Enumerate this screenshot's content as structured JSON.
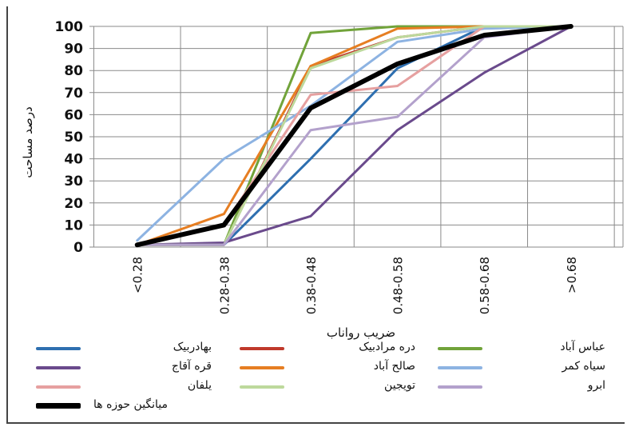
{
  "chart_data": {
    "type": "line",
    "categories": [
      "<0.28",
      "0.28-0.38",
      "0.38-0.48",
      "0.48-0.58",
      "0.58-0.68",
      ">0.68"
    ],
    "xlabel": "ضریب رواناب",
    "ylabel": "درصد مساحت",
    "ylim": [
      0,
      100
    ],
    "yticks": [
      "0",
      "10",
      "20",
      "30",
      "40",
      "50",
      "60",
      "70",
      "80",
      "90",
      "100"
    ],
    "grid": true,
    "legend_position": "bottom",
    "series": [
      {
        "name": "بهادربیک",
        "color": "#2E6FB0",
        "values": [
          1,
          1,
          40,
          81,
          100,
          100
        ]
      },
      {
        "name": "دره مرادبیک",
        "color": "#C0392B",
        "values": [
          1,
          1,
          82,
          95,
          100,
          100
        ]
      },
      {
        "name": "عباس آباد",
        "color": "#71A33A",
        "values": [
          1,
          1,
          97,
          100,
          100,
          100
        ]
      },
      {
        "name": "قره آقاج",
        "color": "#6A4A8C",
        "values": [
          1,
          2,
          14,
          53,
          79,
          100
        ]
      },
      {
        "name": "صالح آباد",
        "color": "#E67E22",
        "values": [
          1,
          15,
          82,
          99,
          100,
          100
        ]
      },
      {
        "name": "سیاه کمر",
        "color": "#8DB3E2",
        "values": [
          3,
          40,
          64,
          93,
          99,
          100
        ]
      },
      {
        "name": "یلفان",
        "color": "#E6A0A0",
        "values": [
          1,
          10,
          69,
          73,
          100,
          100
        ]
      },
      {
        "name": "تویجین",
        "color": "#BDD99C",
        "values": [
          1,
          1,
          81,
          95,
          100,
          100
        ]
      },
      {
        "name": "ابرو",
        "color": "#B3A1CC",
        "values": [
          1,
          1,
          53,
          59,
          95,
          100
        ]
      },
      {
        "name": "میانگین حوزه ها",
        "color": "#000000",
        "values": [
          1,
          10,
          63,
          83,
          96,
          100
        ],
        "bold": true
      }
    ]
  }
}
